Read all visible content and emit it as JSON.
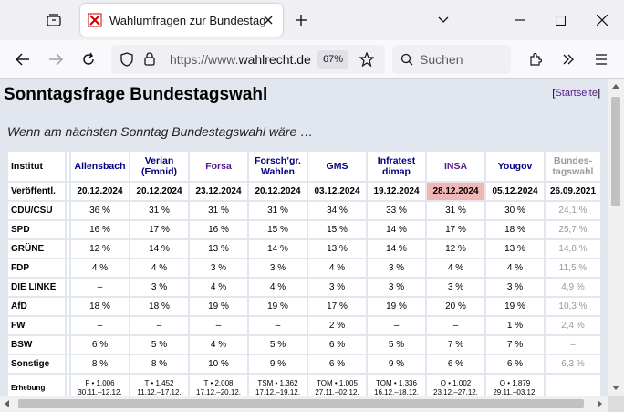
{
  "browser": {
    "tab_title": "Wahlumfragen zur Bundestagswahl",
    "url_prefix": "https://www.",
    "url_domain": "wahlrecht.de",
    "zoom": "67%",
    "search_placeholder": "Suchen"
  },
  "page": {
    "heading": "Sonntagsfrage Bundestagswahl",
    "start_link": "Startseite",
    "intro": "Wenn am nächsten Sonntag Bundestagswahl wäre …"
  },
  "table": {
    "head_label": "Institut",
    "institutes": [
      {
        "l1": "Allensbach",
        "l2": ""
      },
      {
        "l1": "Verian",
        "l2": "(Emnid)"
      },
      {
        "l1": "Forsa",
        "l2": ""
      },
      {
        "l1": "Forsch’gr.",
        "l2": "Wahlen"
      },
      {
        "l1": "GMS",
        "l2": ""
      },
      {
        "l1": "Infratest",
        "l2": "dimap"
      },
      {
        "l1": "INSA",
        "l2": ""
      },
      {
        "l1": "Yougov",
        "l2": ""
      },
      {
        "l1": "Bundes-",
        "l2": "tagswahl"
      }
    ],
    "date_label": "Veröffentl.",
    "dates": [
      "20.12.2024",
      "20.12.2024",
      "23.12.2024",
      "20.12.2024",
      "03.12.2024",
      "19.12.2024",
      "28.12.2024",
      "05.12.2024",
      "26.09.2021"
    ],
    "rows": [
      {
        "party": "CDU/CSU",
        "values": [
          "36 %",
          "31 %",
          "31 %",
          "31 %",
          "34 %",
          "33 %",
          "31 %",
          "30 %",
          "24,1 %"
        ]
      },
      {
        "party": "SPD",
        "values": [
          "16 %",
          "17 %",
          "16 %",
          "15 %",
          "15 %",
          "14 %",
          "17 %",
          "18 %",
          "25,7 %"
        ]
      },
      {
        "party": "GRÜNE",
        "values": [
          "12 %",
          "14 %",
          "13 %",
          "14 %",
          "13 %",
          "14 %",
          "12 %",
          "13 %",
          "14,8 %"
        ]
      },
      {
        "party": "FDP",
        "values": [
          "4 %",
          "4 %",
          "3 %",
          "3 %",
          "4 %",
          "3 %",
          "4 %",
          "4 %",
          "11,5 %"
        ]
      },
      {
        "party": "DIE LINKE",
        "values": [
          "–",
          "3 %",
          "4 %",
          "4 %",
          "3 %",
          "3 %",
          "3 %",
          "3 %",
          "4,9 %"
        ]
      },
      {
        "party": "AfD",
        "values": [
          "18 %",
          "18 %",
          "19 %",
          "19 %",
          "17 %",
          "19 %",
          "20 %",
          "19 %",
          "10,3 %"
        ]
      },
      {
        "party": "FW",
        "values": [
          "–",
          "–",
          "–",
          "–",
          "2 %",
          "–",
          "–",
          "1 %",
          "2,4 %"
        ]
      },
      {
        "party": "BSW",
        "values": [
          "6 %",
          "5 %",
          "4 %",
          "5 %",
          "6 %",
          "5 %",
          "7 %",
          "7 %",
          "–"
        ]
      },
      {
        "party": "Sonstige",
        "values": [
          "8 %",
          "8 %",
          "10 %",
          "9 %",
          "6 %",
          "9 %",
          "6 %",
          "6 %",
          "6,3 %"
        ]
      }
    ],
    "erhebung_label": "Erhebung",
    "erhebung": [
      {
        "l1": "F • 1.006",
        "l2": "30.11.–12.12."
      },
      {
        "l1": "T • 1.452",
        "l2": "11.12.–17.12."
      },
      {
        "l1": "T • 2.008",
        "l2": "17.12.–20.12."
      },
      {
        "l1": "TSM • 1.362",
        "l2": "17.12.–19.12."
      },
      {
        "l1": "TOM • 1.005",
        "l2": "27.11.–02.12."
      },
      {
        "l1": "TOM • 1.336",
        "l2": "16.12.–18.12."
      },
      {
        "l1": "O • 1.002",
        "l2": "23.12.–27.12."
      },
      {
        "l1": "O • 1.879",
        "l2": "29.11.–03.12."
      },
      {
        "l1": "",
        "l2": ""
      }
    ]
  }
}
